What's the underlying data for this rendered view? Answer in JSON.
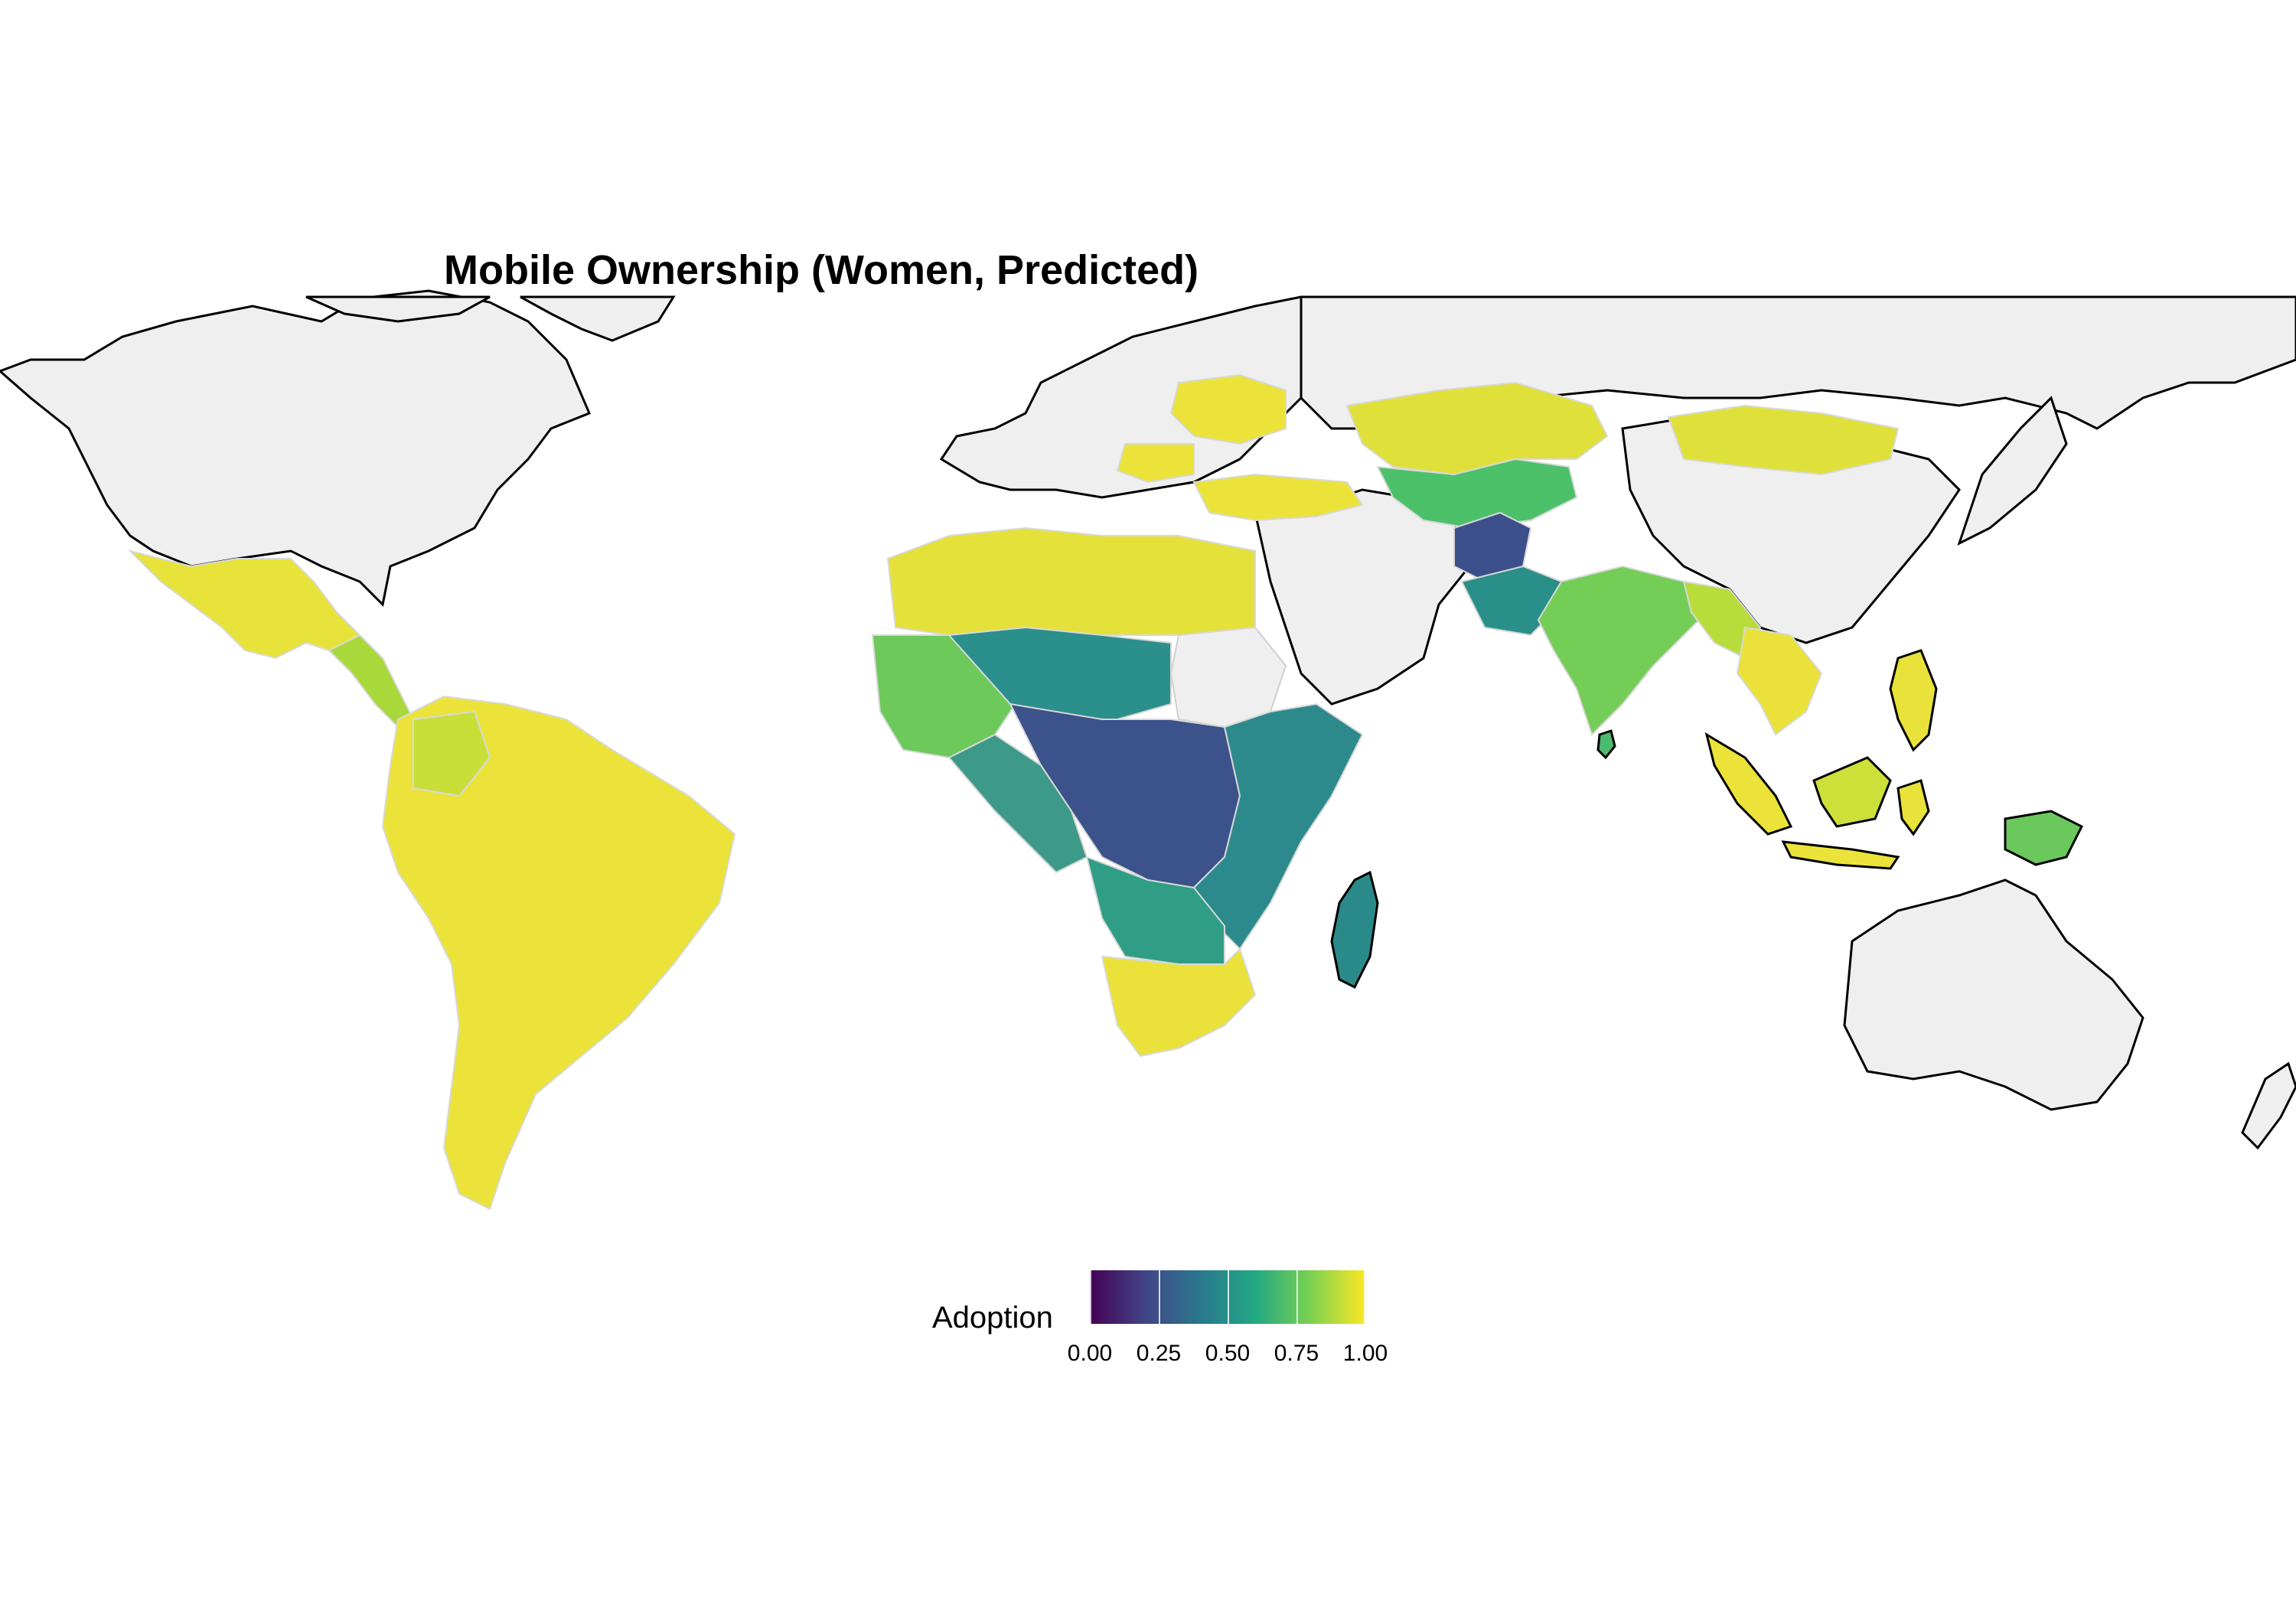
{
  "title": "Mobile Ownership (Women, Predicted)",
  "legend": {
    "title": "Adoption",
    "tick_labels": [
      "0.00",
      "0.25",
      "0.50",
      "0.75",
      "1.00"
    ],
    "range": [
      0,
      1
    ],
    "palette": "viridis",
    "colors": [
      "#440154",
      "#414487",
      "#2a788e",
      "#22a884",
      "#7ad151",
      "#fde725"
    ],
    "placement": "bottom"
  },
  "map_style": {
    "no_data_color": "#efefef",
    "border_color": "#cfcfcf",
    "coastline_color": "#000000"
  },
  "regions": [
    {
      "name": "Mexico",
      "adoption": 0.95
    },
    {
      "name": "Central America",
      "adoption": 0.88
    },
    {
      "name": "South America",
      "adoption": 0.95
    },
    {
      "name": "North Africa",
      "adoption": 0.92
    },
    {
      "name": "Sahel",
      "adoption": 0.55
    },
    {
      "name": "West Africa",
      "adoption": 0.6
    },
    {
      "name": "Central Africa",
      "adoption": 0.3
    },
    {
      "name": "East Africa",
      "adoption": 0.45
    },
    {
      "name": "Southern Africa",
      "adoption": 0.93
    },
    {
      "name": "Madagascar",
      "adoption": 0.45
    },
    {
      "name": "Ukraine",
      "adoption": 0.95
    },
    {
      "name": "Turkey",
      "adoption": 0.95
    },
    {
      "name": "Kazakhstan",
      "adoption": 0.95
    },
    {
      "name": "Mongolia",
      "adoption": 0.95
    },
    {
      "name": "Afghanistan",
      "adoption": 0.28
    },
    {
      "name": "Pakistan",
      "adoption": 0.55
    },
    {
      "name": "India",
      "adoption": 0.75
    },
    {
      "name": "Southeast Asia",
      "adoption": 0.9
    },
    {
      "name": "Philippines",
      "adoption": 0.95
    },
    {
      "name": "Indonesia",
      "adoption": 0.95
    },
    {
      "name": "Papua New Guinea",
      "adoption": 0.65
    }
  ]
}
